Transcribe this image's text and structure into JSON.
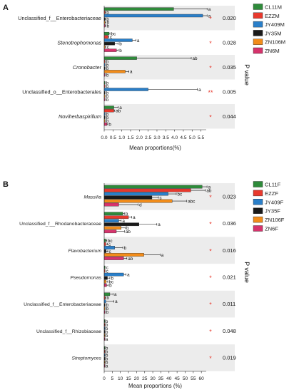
{
  "panels": [
    {
      "letter": "A",
      "pvalue_label": "P value",
      "xlabel": "Mean proportions(%)",
      "xticks": [
        "0.0",
        "0.5",
        "1.0",
        "1.5",
        "2.0",
        "2.5",
        "3.0",
        "3.5",
        "4.0",
        "4.5",
        "5.0",
        "5.5"
      ],
      "xlim": [
        0,
        5.8
      ],
      "colors": [
        "#2e8b3a",
        "#e8392d",
        "#2a7fc9",
        "#1a1a1a",
        "#f28c1a",
        "#d6336c"
      ],
      "legend": [
        "CL11M",
        "EZZM",
        "JY409M",
        "JY35M",
        "ZN106M",
        "ZN6M"
      ],
      "groups": [
        {
          "taxon": "Unclassified_f__Enterobacteriaceae",
          "italic": false,
          "values": [
            3.95,
            0.05,
            5.6,
            0.05,
            0.04,
            0.03
          ],
          "errors": [
            1.9,
            0.02,
            0.25,
            0.02,
            0.05,
            0.05
          ],
          "letters": [
            "a",
            "b",
            "a",
            "b",
            "b",
            "b"
          ],
          "pvalue": "0.020",
          "star": "*"
        },
        {
          "taxon": "Stenotrophomonas",
          "italic": true,
          "values": [
            0.28,
            0.22,
            1.6,
            0.6,
            0.04,
            0.7
          ],
          "errors": [
            0.05,
            0.04,
            0.2,
            0.2,
            0.05,
            0.1
          ],
          "letters": [
            "bc",
            "c",
            "a",
            "b",
            "c",
            "b"
          ],
          "pvalue": "0.028",
          "star": "*"
        },
        {
          "taxon": "Cronobacter",
          "italic": true,
          "values": [
            1.85,
            0.03,
            0.03,
            0.03,
            1.2,
            0.03
          ],
          "errors": [
            3.1,
            0.02,
            0.02,
            0.02,
            0.2,
            0.02
          ],
          "letters": [
            "ab",
            "b",
            "b",
            "b",
            "a",
            "b"
          ],
          "pvalue": "0.035",
          "star": "*"
        },
        {
          "taxon": "Unclassified_o__Enterobacterales",
          "italic": false,
          "values": [
            0.03,
            0.03,
            2.5,
            0.03,
            0.03,
            0.03
          ],
          "errors": [
            0.02,
            0.02,
            2.8,
            0.02,
            0.02,
            0.02
          ],
          "letters": [
            "b",
            "b",
            "a",
            "b",
            "b",
            "b"
          ],
          "pvalue": "0.005",
          "star": "**"
        },
        {
          "taxon": "Noviherbaspirillum",
          "italic": true,
          "values": [
            0.55,
            0.55,
            0.03,
            0.03,
            0.03,
            0.15
          ],
          "errors": [
            0.25,
            0.05,
            0.02,
            0.02,
            0.02,
            0.05
          ],
          "letters": [
            "a",
            "ab",
            "b",
            "b",
            "b",
            "b"
          ],
          "pvalue": "0.044",
          "star": "*"
        }
      ]
    },
    {
      "letter": "B",
      "pvalue_label": "P value",
      "xlabel": "Mean proportions (%)",
      "xticks": [
        "0",
        "5",
        "10",
        "15",
        "20",
        "25",
        "30",
        "35",
        "40",
        "45",
        "50",
        "55",
        "60"
      ],
      "xlim": [
        0,
        63
      ],
      "colors": [
        "#2e8b3a",
        "#e8392d",
        "#2a7fc9",
        "#1a1a1a",
        "#f28c1a",
        "#d6336c"
      ],
      "legend": [
        "CL11F",
        "EZZF",
        "JY409F",
        "JY35F",
        "ZN106F",
        "ZN6F"
      ],
      "groups": [
        {
          "taxon": "Massilia",
          "italic": true,
          "values": [
            60.5,
            53.5,
            39.5,
            29.5,
            42.0,
            9.0
          ],
          "errors": [
            3.0,
            9.0,
            5.0,
            4.0,
            9.0,
            12.0
          ],
          "letters": [
            "a",
            "ab",
            "bc",
            "c",
            "abc",
            "d"
          ],
          "pvalue": "0.023",
          "star": "*"
        },
        {
          "taxon": "Unclassified_f__Rhodanobacteraceae",
          "italic": false,
          "values": [
            11.5,
            15.0,
            9.0,
            21.5,
            10.5,
            7.5
          ],
          "errors": [
            1.0,
            2.0,
            1.5,
            11.0,
            2.5,
            5.0
          ],
          "letters": [
            "b",
            "a",
            "a",
            "a",
            "b",
            "ab"
          ],
          "pvalue": "0.036",
          "star": "*"
        },
        {
          "taxon": "Flavobacterium",
          "italic": true,
          "values": [
            1.0,
            1.0,
            6.5,
            1.2,
            24.5,
            12.0
          ],
          "errors": [
            0.5,
            1.0,
            5.0,
            1.0,
            10.0,
            2.0
          ],
          "letters": [
            "bc",
            "c",
            "b",
            "c",
            "a",
            "ab"
          ],
          "pvalue": "0.016",
          "star": "*"
        },
        {
          "taxon": "Pseudomonas",
          "italic": true,
          "values": [
            0.3,
            0.3,
            12.0,
            2.0,
            1.2,
            1.5
          ],
          "errors": [
            0.2,
            0.2,
            1.5,
            1.5,
            1.0,
            1.0
          ],
          "letters": [
            "c",
            "c",
            "a",
            "b",
            "bc",
            "b"
          ],
          "pvalue": "0.021",
          "star": "*"
        },
        {
          "taxon": "Unclassified_f__Enterobacteriaceae",
          "italic": false,
          "values": [
            3.5,
            0.5,
            1.0,
            0.3,
            0.3,
            0.3
          ],
          "errors": [
            2.0,
            0.3,
            5.0,
            0.2,
            0.2,
            0.2
          ],
          "letters": [
            "a",
            "b",
            "a",
            "b",
            "b",
            "b"
          ],
          "pvalue": "0.011",
          "star": "*"
        },
        {
          "taxon": "Unclassified_f__Rhizobiaceae",
          "italic": false,
          "values": [
            0.1,
            0.1,
            0.1,
            0.1,
            0.1,
            0.1
          ],
          "errors": [
            0.05,
            0.05,
            0.05,
            0.05,
            0.05,
            0.05
          ],
          "letters": [
            "b",
            "b",
            "b",
            "b",
            "b",
            "a"
          ],
          "pvalue": "0.048",
          "star": "*"
        },
        {
          "taxon": "Streptomyces",
          "italic": true,
          "values": [
            0.1,
            0.1,
            0.1,
            0.1,
            0.1,
            0.1
          ],
          "errors": [
            0.05,
            0.05,
            0.05,
            0.05,
            0.05,
            0.05
          ],
          "letters": [
            "b",
            "b",
            "b",
            "b",
            "b",
            "a"
          ],
          "pvalue": "0.019",
          "star": "*"
        }
      ]
    }
  ],
  "chart_data": [
    {
      "type": "bar",
      "orientation": "horizontal",
      "categories": [
        "Unclassified_f__Enterobacteriaceae",
        "Stenotrophomonas",
        "Cronobacter",
        "Unclassified_o__Enterobacterales",
        "Noviherbaspirillum"
      ],
      "series": [
        {
          "name": "CL11M",
          "values": [
            3.95,
            0.28,
            1.85,
            0.03,
            0.55
          ]
        },
        {
          "name": "EZZM",
          "values": [
            0.05,
            0.22,
            0.03,
            0.03,
            0.55
          ]
        },
        {
          "name": "JY409M",
          "values": [
            5.6,
            1.6,
            0.03,
            2.5,
            0.03
          ]
        },
        {
          "name": "JY35M",
          "values": [
            0.05,
            0.6,
            0.03,
            0.03,
            0.03
          ]
        },
        {
          "name": "ZN106M",
          "values": [
            0.04,
            0.04,
            1.2,
            0.03,
            0.03
          ]
        },
        {
          "name": "ZN6M",
          "values": [
            0.03,
            0.7,
            0.03,
            0.03,
            0.15
          ]
        }
      ],
      "xlabel": "Mean proportions(%)",
      "ylabel": "",
      "xlim": [
        0,
        5.8
      ],
      "p_values": [
        "0.020",
        "0.028",
        "0.035",
        "0.005",
        "0.044"
      ],
      "legend_position": "right"
    },
    {
      "type": "bar",
      "orientation": "horizontal",
      "categories": [
        "Massilia",
        "Unclassified_f__Rhodanobacteraceae",
        "Flavobacterium",
        "Pseudomonas",
        "Unclassified_f__Enterobacteriaceae",
        "Unclassified_f__Rhizobiaceae",
        "Streptomyces"
      ],
      "series": [
        {
          "name": "CL11F",
          "values": [
            60.5,
            11.5,
            1.0,
            0.3,
            3.5,
            0.1,
            0.1
          ]
        },
        {
          "name": "EZZF",
          "values": [
            53.5,
            15.0,
            1.0,
            0.3,
            0.5,
            0.1,
            0.1
          ]
        },
        {
          "name": "JY409F",
          "values": [
            39.5,
            9.0,
            6.5,
            12.0,
            1.0,
            0.1,
            0.1
          ]
        },
        {
          "name": "JY35F",
          "values": [
            29.5,
            21.5,
            1.2,
            2.0,
            0.3,
            0.1,
            0.1
          ]
        },
        {
          "name": "ZN106F",
          "values": [
            42.0,
            10.5,
            24.5,
            1.2,
            0.3,
            0.1,
            0.1
          ]
        },
        {
          "name": "ZN6F",
          "values": [
            9.0,
            7.5,
            12.0,
            1.5,
            0.3,
            0.1,
            0.1
          ]
        }
      ],
      "xlabel": "Mean proportions (%)",
      "ylabel": "",
      "xlim": [
        0,
        63
      ],
      "p_values": [
        "0.023",
        "0.036",
        "0.016",
        "0.021",
        "0.011",
        "0.048",
        "0.019"
      ],
      "legend_position": "right"
    }
  ]
}
